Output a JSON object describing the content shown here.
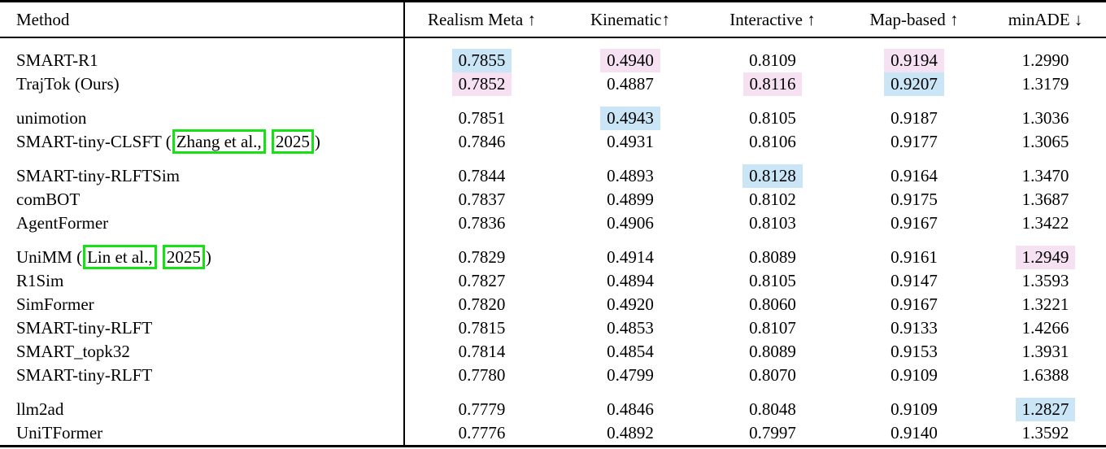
{
  "colors": {
    "best_highlight": "#c9e5f6",
    "second_highlight": "#f6e1f2",
    "citation_link_box": "#16e016",
    "rule": "#000000"
  },
  "header": {
    "columns": [
      "Method",
      "Realism Meta ↑",
      "Kinematic↑",
      "Interactive ↑",
      "Map-based ↑",
      "minADE ↓"
    ]
  },
  "groups": [
    {
      "rows": [
        {
          "method": [
            {
              "t": "SMART-R1"
            }
          ],
          "values": [
            "0.7855",
            "0.4940",
            "0.8109",
            "0.9194",
            "1.2990"
          ],
          "hl": [
            "best",
            "second",
            null,
            "second",
            null
          ]
        },
        {
          "method": [
            {
              "t": "TrajTok (Ours)"
            }
          ],
          "values": [
            "0.7852",
            "0.4887",
            "0.8116",
            "0.9207",
            "1.3179"
          ],
          "hl": [
            "second",
            null,
            "second",
            "best",
            null
          ]
        }
      ]
    },
    {
      "rows": [
        {
          "method": [
            {
              "t": "unimotion"
            }
          ],
          "values": [
            "0.7851",
            "0.4943",
            "0.8105",
            "0.9187",
            "1.3036"
          ],
          "hl": [
            null,
            "best",
            null,
            null,
            null
          ]
        },
        {
          "method": [
            {
              "t": "SMART-tiny-CLSFT ("
            },
            {
              "t": "Zhang et al.,",
              "link": true
            },
            {
              "t": " "
            },
            {
              "t": "2025",
              "link": true
            },
            {
              "t": ")"
            }
          ],
          "values": [
            "0.7846",
            "0.4931",
            "0.8106",
            "0.9177",
            "1.3065"
          ],
          "hl": [
            null,
            null,
            null,
            null,
            null
          ]
        }
      ]
    },
    {
      "rows": [
        {
          "method": [
            {
              "t": "SMART-tiny-RLFTSim"
            }
          ],
          "values": [
            "0.7844",
            "0.4893",
            "0.8128",
            "0.9164",
            "1.3470"
          ],
          "hl": [
            null,
            null,
            "best",
            null,
            null
          ]
        },
        {
          "method": [
            {
              "t": "comBOT"
            }
          ],
          "values": [
            "0.7837",
            "0.4899",
            "0.8102",
            "0.9175",
            "1.3687"
          ],
          "hl": [
            null,
            null,
            null,
            null,
            null
          ]
        },
        {
          "method": [
            {
              "t": "AgentFormer"
            }
          ],
          "values": [
            "0.7836",
            "0.4906",
            "0.8103",
            "0.9167",
            "1.3422"
          ],
          "hl": [
            null,
            null,
            null,
            null,
            null
          ]
        }
      ]
    },
    {
      "rows": [
        {
          "method": [
            {
              "t": "UniMM ("
            },
            {
              "t": "Lin et al.,",
              "link": true
            },
            {
              "t": " "
            },
            {
              "t": "2025",
              "link": true
            },
            {
              "t": ")"
            }
          ],
          "values": [
            "0.7829",
            "0.4914",
            "0.8089",
            "0.9161",
            "1.2949"
          ],
          "hl": [
            null,
            null,
            null,
            null,
            "second"
          ]
        },
        {
          "method": [
            {
              "t": "R1Sim"
            }
          ],
          "values": [
            "0.7827",
            "0.4894",
            "0.8105",
            "0.9147",
            "1.3593"
          ],
          "hl": [
            null,
            null,
            null,
            null,
            null
          ]
        },
        {
          "method": [
            {
              "t": "SimFormer"
            }
          ],
          "values": [
            "0.7820",
            "0.4920",
            "0.8060",
            "0.9167",
            "1.3221"
          ],
          "hl": [
            null,
            null,
            null,
            null,
            null
          ]
        },
        {
          "method": [
            {
              "t": "SMART-tiny-RLFT"
            }
          ],
          "values": [
            "0.7815",
            "0.4853",
            "0.8107",
            "0.9133",
            "1.4266"
          ],
          "hl": [
            null,
            null,
            null,
            null,
            null
          ]
        },
        {
          "method": [
            {
              "t": "SMART_topk32"
            }
          ],
          "values": [
            "0.7814",
            "0.4854",
            "0.8089",
            "0.9153",
            "1.3931"
          ],
          "hl": [
            null,
            null,
            null,
            null,
            null
          ]
        },
        {
          "method": [
            {
              "t": "SMART-tiny-RLFT"
            }
          ],
          "values": [
            "0.7780",
            "0.4799",
            "0.8070",
            "0.9109",
            "1.6388"
          ],
          "hl": [
            null,
            null,
            null,
            null,
            null
          ]
        }
      ]
    },
    {
      "rows": [
        {
          "method": [
            {
              "t": "llm2ad"
            }
          ],
          "values": [
            "0.7779",
            "0.4846",
            "0.8048",
            "0.9109",
            "1.2827"
          ],
          "hl": [
            null,
            null,
            null,
            null,
            "best"
          ]
        },
        {
          "method": [
            {
              "t": "UniTFormer"
            }
          ],
          "values": [
            "0.7776",
            "0.4892",
            "0.7997",
            "0.9140",
            "1.3592"
          ],
          "hl": [
            null,
            null,
            null,
            null,
            null
          ]
        }
      ]
    }
  ]
}
